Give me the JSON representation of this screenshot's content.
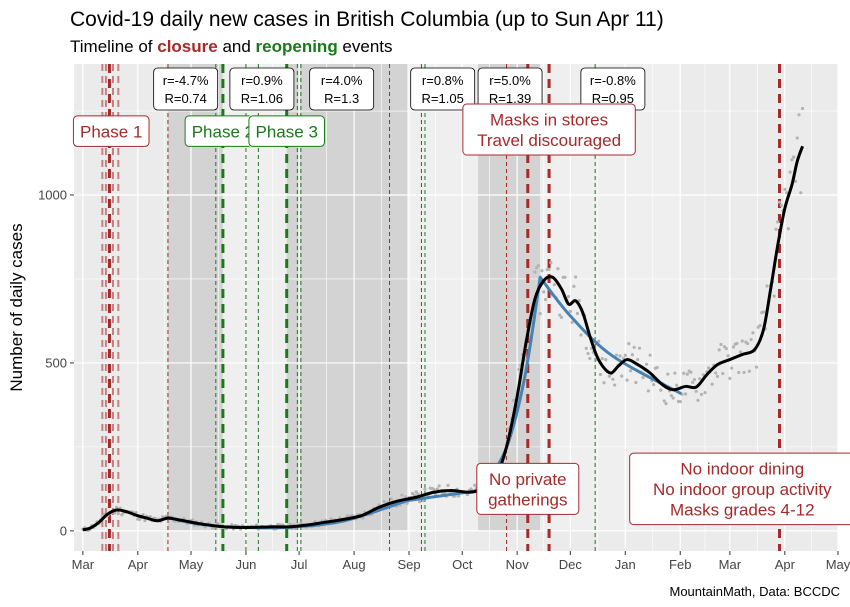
{
  "chart_data": {
    "type": "line",
    "title": "Covid-19 daily new cases in British Columbia (up to Sun Apr 11)",
    "subtitle": {
      "before": "Timeline of ",
      "closure": "closure",
      "middle": " and ",
      "reopening": "reopening",
      "after": " events",
      "closure_color": "#a52a2a",
      "reopening_color": "#1a7a1a"
    },
    "ylabel": "Number of daily cases",
    "xlabel": "",
    "caption": "MountainMath, Data: BCCDC",
    "x_start": "2020-02-25",
    "x_end": "2021-05-01",
    "ylim": [
      -60,
      1390
    ],
    "y_ticks": [
      0,
      500,
      1000
    ],
    "x_ticks": [
      {
        "label": "Mar",
        "date": "2020-03-01"
      },
      {
        "label": "Apr",
        "date": "2020-04-01"
      },
      {
        "label": "May",
        "date": "2020-05-01"
      },
      {
        "label": "Jun",
        "date": "2020-06-01"
      },
      {
        "label": "Jul",
        "date": "2020-07-01"
      },
      {
        "label": "Aug",
        "date": "2020-08-01"
      },
      {
        "label": "Sep",
        "date": "2020-09-01"
      },
      {
        "label": "Oct",
        "date": "2020-10-01"
      },
      {
        "label": "Nov",
        "date": "2020-11-01"
      },
      {
        "label": "Dec",
        "date": "2020-12-01"
      },
      {
        "label": "Jan",
        "date": "2021-01-01"
      },
      {
        "label": "Feb",
        "date": "2021-02-01"
      },
      {
        "label": "Mar",
        "date": "2021-03-01"
      },
      {
        "label": "Apr",
        "date": "2021-04-01"
      },
      {
        "label": "May",
        "date": "2021-05-01"
      }
    ],
    "colors": {
      "panel": "#ebebeb",
      "grid": "#ffffff",
      "trend": "#000000",
      "fit": "#4682b4",
      "points": "#b3b3b3",
      "closure": "#a52a2a",
      "reopening": "#1a7a1a"
    },
    "shaded_periods": [
      {
        "start": "2020-04-18",
        "end": "2020-05-19",
        "shade": "#d3d3d3"
      },
      {
        "start": "2020-05-19",
        "end": "2020-06-24",
        "shade": "#efefef"
      },
      {
        "start": "2020-06-24",
        "end": "2020-08-31",
        "shade": "#d3d3d3"
      },
      {
        "start": "2020-08-31",
        "end": "2020-10-10",
        "shade": "#efefef"
      },
      {
        "start": "2020-10-10",
        "end": "2020-11-14",
        "shade": "#d3d3d3"
      },
      {
        "start": "2020-11-14",
        "end": "2021-02-01",
        "shade": "#efefef"
      }
    ],
    "events": [
      {
        "date": "2020-03-12",
        "type": "closure",
        "weight": "light"
      },
      {
        "date": "2020-03-14",
        "type": "closure",
        "weight": "light"
      },
      {
        "date": "2020-03-16",
        "type": "closure",
        "weight": "major"
      },
      {
        "date": "2020-03-18",
        "type": "closure",
        "weight": "light"
      },
      {
        "date": "2020-03-21",
        "type": "closure",
        "weight": "light"
      },
      {
        "date": "2020-04-18",
        "type": "closure",
        "weight": "minor"
      },
      {
        "date": "2020-05-15",
        "type": "reopening",
        "weight": "minor"
      },
      {
        "date": "2020-05-19",
        "type": "reopening",
        "weight": "major"
      },
      {
        "date": "2020-06-01",
        "type": "reopening",
        "weight": "minor"
      },
      {
        "date": "2020-06-08",
        "type": "reopening",
        "weight": "minor"
      },
      {
        "date": "2020-06-24",
        "type": "reopening",
        "weight": "major"
      },
      {
        "date": "2020-06-30",
        "type": "reopening",
        "weight": "minor"
      },
      {
        "date": "2020-07-02",
        "type": "reopening",
        "weight": "minor"
      },
      {
        "date": "2020-08-21",
        "type": "closure",
        "weight": "minor"
      },
      {
        "date": "2020-09-08",
        "type": "closure",
        "weight": "minor"
      },
      {
        "date": "2020-09-10",
        "type": "reopening",
        "weight": "minor"
      },
      {
        "date": "2020-10-26",
        "type": "closure",
        "weight": "minor"
      },
      {
        "date": "2020-11-07",
        "type": "closure",
        "weight": "major"
      },
      {
        "date": "2020-11-19",
        "type": "closure",
        "weight": "major"
      },
      {
        "date": "2020-12-15",
        "type": "reopening",
        "weight": "minor"
      },
      {
        "date": "2021-03-29",
        "type": "closure",
        "weight": "major"
      }
    ],
    "growth_labels": [
      {
        "center": "2020-04-28",
        "r": "r=-4.7%",
        "R": "R=0.74"
      },
      {
        "center": "2020-06-10",
        "r": "r=0.9%",
        "R": "R=1.06"
      },
      {
        "center": "2020-07-25",
        "r": "r=4.0%",
        "R": "R=1.3"
      },
      {
        "center": "2020-09-20",
        "r": "r=0.8%",
        "R": "R=1.05"
      },
      {
        "center": "2020-10-28",
        "r": "r=5.0%",
        "R": "R=1.39"
      },
      {
        "center": "2020-12-25",
        "r": "r=-0.8%",
        "R": "R=0.95"
      }
    ],
    "annotations": [
      {
        "lines": [
          "Phase 1"
        ],
        "date": "2020-03-17",
        "y": 1190,
        "type": "closure"
      },
      {
        "lines": [
          "Phase 2"
        ],
        "date": "2020-05-19",
        "y": 1190,
        "type": "reopening",
        "clip_right_date": "2020-06-03"
      },
      {
        "lines": [
          "Phase 3"
        ],
        "date": "2020-06-24",
        "y": 1190,
        "type": "reopening"
      },
      {
        "lines": [
          "Masks in stores",
          "Travel discouraged"
        ],
        "date": "2020-11-19",
        "y": 1195,
        "type": "closure"
      },
      {
        "lines": [
          "No private",
          "gatherings"
        ],
        "date": "2020-11-07",
        "y": 125,
        "type": "closure"
      },
      {
        "lines": [
          "No indoor dining",
          "No indoor group activity",
          "Masks grades 4-12"
        ],
        "date": "2021-03-08",
        "y": 125,
        "type": "closure"
      }
    ],
    "trend": [
      [
        "2020-03-01",
        3
      ],
      [
        "2020-03-05",
        8
      ],
      [
        "2020-03-10",
        25
      ],
      [
        "2020-03-15",
        50
      ],
      [
        "2020-03-20",
        62
      ],
      [
        "2020-03-25",
        58
      ],
      [
        "2020-04-01",
        45
      ],
      [
        "2020-04-06",
        38
      ],
      [
        "2020-04-12",
        30
      ],
      [
        "2020-04-18",
        38
      ],
      [
        "2020-04-24",
        33
      ],
      [
        "2020-05-01",
        26
      ],
      [
        "2020-05-10",
        18
      ],
      [
        "2020-05-20",
        12
      ],
      [
        "2020-06-01",
        10
      ],
      [
        "2020-06-15",
        12
      ],
      [
        "2020-06-25",
        12
      ],
      [
        "2020-07-05",
        17
      ],
      [
        "2020-07-15",
        25
      ],
      [
        "2020-07-25",
        33
      ],
      [
        "2020-08-05",
        45
      ],
      [
        "2020-08-15",
        70
      ],
      [
        "2020-08-25",
        88
      ],
      [
        "2020-09-05",
        100
      ],
      [
        "2020-09-15",
        115
      ],
      [
        "2020-09-25",
        120
      ],
      [
        "2020-10-05",
        115
      ],
      [
        "2020-10-12",
        125
      ],
      [
        "2020-10-20",
        160
      ],
      [
        "2020-10-26",
        250
      ],
      [
        "2020-11-01",
        400
      ],
      [
        "2020-11-06",
        560
      ],
      [
        "2020-11-11",
        690
      ],
      [
        "2020-11-16",
        745
      ],
      [
        "2020-11-21",
        755
      ],
      [
        "2020-11-26",
        720
      ],
      [
        "2020-11-30",
        675
      ],
      [
        "2020-12-04",
        685
      ],
      [
        "2020-12-08",
        650
      ],
      [
        "2020-12-12",
        580
      ],
      [
        "2020-12-16",
        520
      ],
      [
        "2020-12-20",
        485
      ],
      [
        "2020-12-24",
        470
      ],
      [
        "2020-12-28",
        490
      ],
      [
        "2021-01-02",
        510
      ],
      [
        "2021-01-08",
        495
      ],
      [
        "2021-01-15",
        470
      ],
      [
        "2021-01-22",
        435
      ],
      [
        "2021-01-28",
        420
      ],
      [
        "2021-02-04",
        430
      ],
      [
        "2021-02-10",
        428
      ],
      [
        "2021-02-16",
        465
      ],
      [
        "2021-02-22",
        495
      ],
      [
        "2021-03-01",
        510
      ],
      [
        "2021-03-08",
        525
      ],
      [
        "2021-03-15",
        540
      ],
      [
        "2021-03-20",
        600
      ],
      [
        "2021-03-24",
        720
      ],
      [
        "2021-03-28",
        850
      ],
      [
        "2021-04-01",
        960
      ],
      [
        "2021-04-05",
        1030
      ],
      [
        "2021-04-08",
        1100
      ],
      [
        "2021-04-11",
        1145
      ]
    ],
    "fit_segments": [
      [
        [
          "2020-04-18",
          40
        ],
        [
          "2020-05-01",
          24
        ],
        [
          "2020-05-19",
          12
        ]
      ],
      [
        [
          "2020-05-19",
          12
        ],
        [
          "2020-06-10",
          9
        ],
        [
          "2020-06-24",
          10
        ]
      ],
      [
        [
          "2020-06-24",
          10
        ],
        [
          "2020-07-25",
          28
        ],
        [
          "2020-08-31",
          90
        ]
      ],
      [
        [
          "2020-08-31",
          90
        ],
        [
          "2020-09-20",
          105
        ],
        [
          "2020-10-10",
          120
        ]
      ],
      [
        [
          "2020-10-10",
          120
        ],
        [
          "2020-10-25",
          235
        ],
        [
          "2020-11-05",
          450
        ],
        [
          "2020-11-14",
          755
        ]
      ],
      [
        [
          "2020-11-14",
          755
        ],
        [
          "2020-12-01",
          640
        ],
        [
          "2020-12-25",
          520
        ],
        [
          "2021-02-01",
          410
        ]
      ]
    ]
  }
}
